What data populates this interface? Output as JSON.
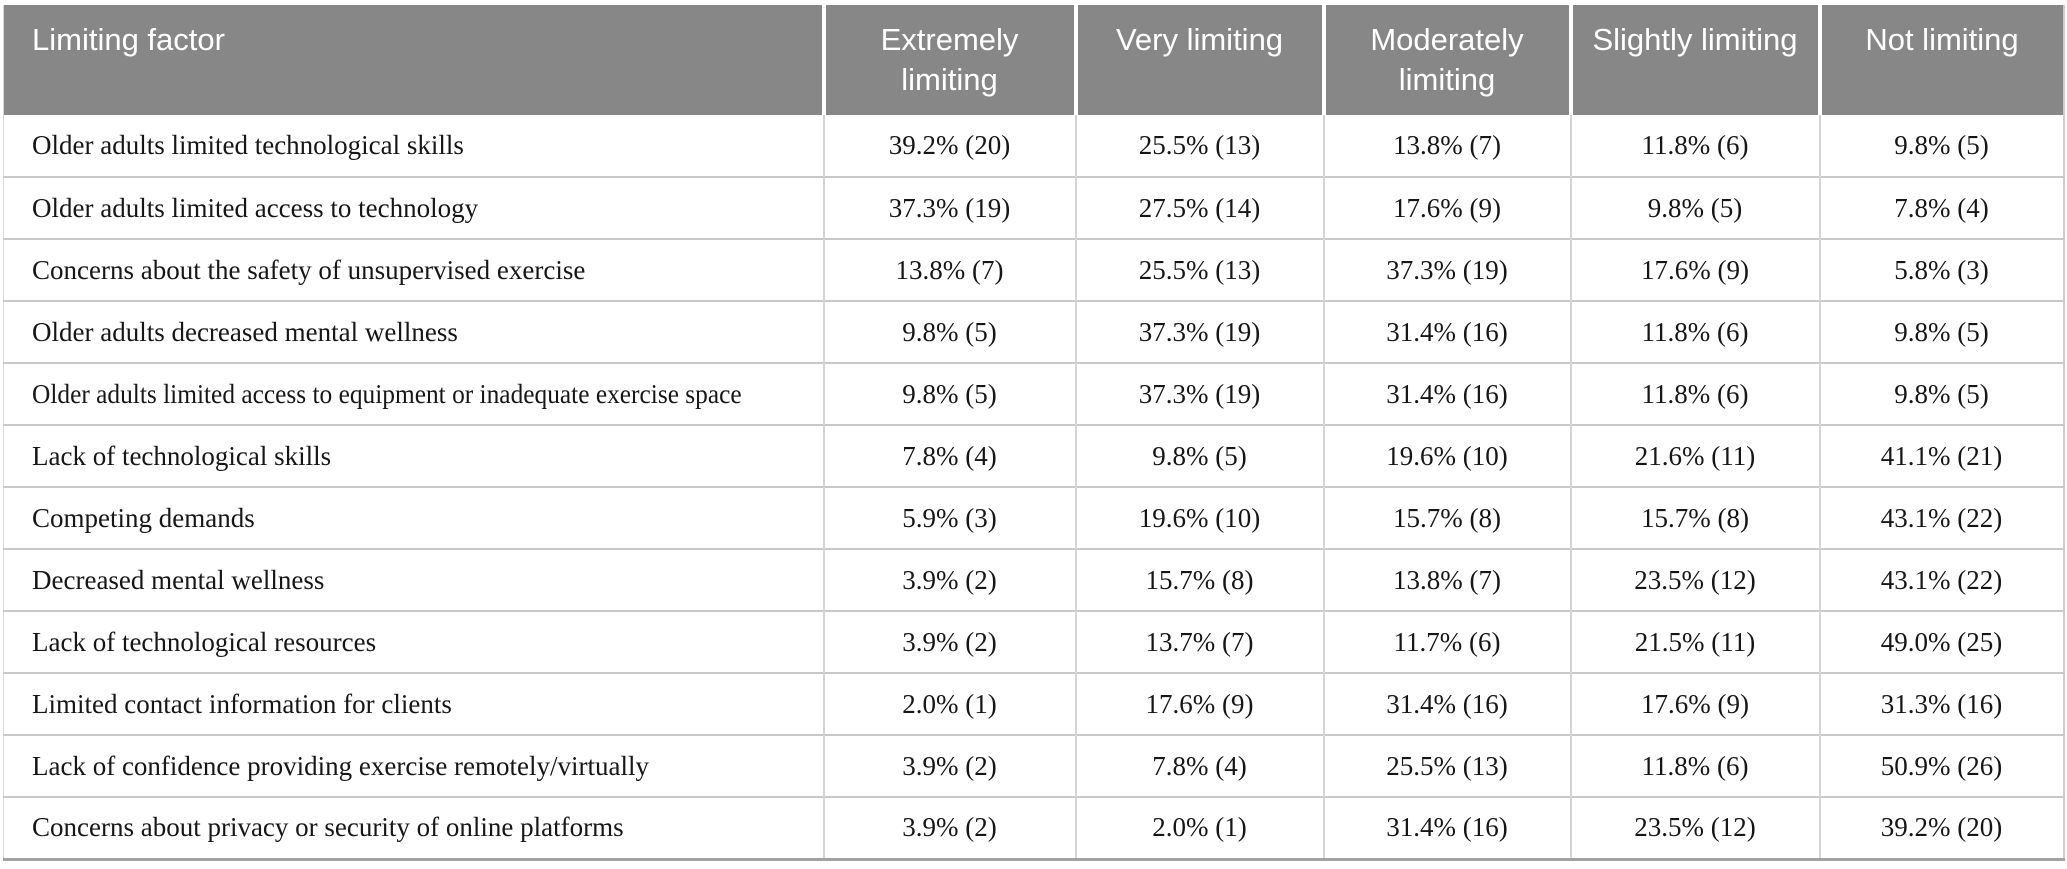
{
  "table": {
    "header": {
      "factor_label": "Limiting factor",
      "columns": [
        "Extremely limiting",
        "Very limiting",
        "Moderately limiting",
        "Slightly limiting",
        "Not limiting"
      ]
    },
    "rows": [
      {
        "factor": "Older adults limited technological skills",
        "values": [
          "39.2% (20)",
          "25.5% (13)",
          "13.8% (7)",
          "11.8% (6)",
          "9.8% (5)"
        ]
      },
      {
        "factor": "Older adults limited access to technology",
        "values": [
          "37.3% (19)",
          "27.5% (14)",
          "17.6% (9)",
          "9.8% (5)",
          "7.8% (4)"
        ]
      },
      {
        "factor": "Concerns about the safety of unsupervised exercise",
        "values": [
          "13.8% (7)",
          "25.5% (13)",
          "37.3% (19)",
          "17.6% (9)",
          "5.8% (3)"
        ]
      },
      {
        "factor": "Older adults decreased mental wellness",
        "values": [
          "9.8% (5)",
          "37.3% (19)",
          "31.4% (16)",
          "11.8% (6)",
          "9.8% (5)"
        ]
      },
      {
        "factor": "Older adults limited access to equipment or inadequate exercise space",
        "values": [
          "9.8% (5)",
          "37.3% (19)",
          "31.4% (16)",
          "11.8% (6)",
          "9.8% (5)"
        ]
      },
      {
        "factor": "Lack of technological skills",
        "values": [
          "7.8% (4)",
          "9.8% (5)",
          "19.6% (10)",
          "21.6% (11)",
          "41.1% (21)"
        ]
      },
      {
        "factor": "Competing demands",
        "values": [
          "5.9% (3)",
          "19.6% (10)",
          "15.7% (8)",
          "15.7% (8)",
          "43.1% (22)"
        ]
      },
      {
        "factor": "Decreased mental wellness",
        "values": [
          "3.9% (2)",
          "15.7% (8)",
          "13.8% (7)",
          "23.5% (12)",
          "43.1% (22)"
        ]
      },
      {
        "factor": "Lack of technological resources",
        "values": [
          "3.9% (2)",
          "13.7% (7)",
          "11.7% (6)",
          "21.5% (11)",
          "49.0% (25)"
        ]
      },
      {
        "factor": "Limited contact information for clients",
        "values": [
          "2.0% (1)",
          "17.6% (9)",
          "31.4% (16)",
          "17.6% (9)",
          "31.3% (16)"
        ]
      },
      {
        "factor": "Lack of confidence providing exercise remotely/virtually",
        "values": [
          "3.9% (2)",
          "7.8% (4)",
          "25.5% (13)",
          "11.8% (6)",
          "50.9% (26)"
        ]
      },
      {
        "factor": "Concerns about privacy or security of online platforms",
        "values": [
          "3.9% (2)",
          "2.0% (1)",
          "31.4% (16)",
          "23.5% (12)",
          "39.2% (20)"
        ]
      }
    ]
  },
  "colors": {
    "header_background": "#878787",
    "header_text": "#ffffff",
    "body_text": "#161616",
    "row_divider": "#c9c9c9",
    "column_divider": "#d4d4d4",
    "bottom_border": "#a2a2a2"
  }
}
